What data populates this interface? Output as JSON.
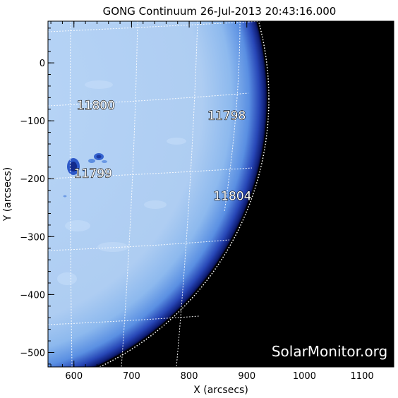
{
  "title": "GONG Continuum 26-Jul-2013 20:43:16.000",
  "x_axis": {
    "label": "X (arcsecs)",
    "range": [
      555,
      1155
    ],
    "ticks": [
      "600",
      "700",
      "800",
      "900",
      "1000",
      "1100"
    ]
  },
  "y_axis": {
    "label": "Y (arcsecs)",
    "range": [
      -525,
      72
    ],
    "ticks": [
      "0",
      "−100",
      "−200",
      "−300",
      "−400",
      "−500"
    ]
  },
  "active_regions": [
    {
      "label": "11800",
      "x": 605,
      "y": -80
    },
    {
      "label": "11798",
      "x": 832,
      "y": -98
    },
    {
      "label": "11799",
      "x": 600,
      "y": -198
    },
    {
      "label": "11804",
      "x": 842,
      "y": -237
    }
  ],
  "watermark": "SolarMonitor.org",
  "colors": {
    "disk": "#b3d2f5",
    "limb": "#10207a",
    "space": "#000000",
    "frame": "#000000"
  }
}
